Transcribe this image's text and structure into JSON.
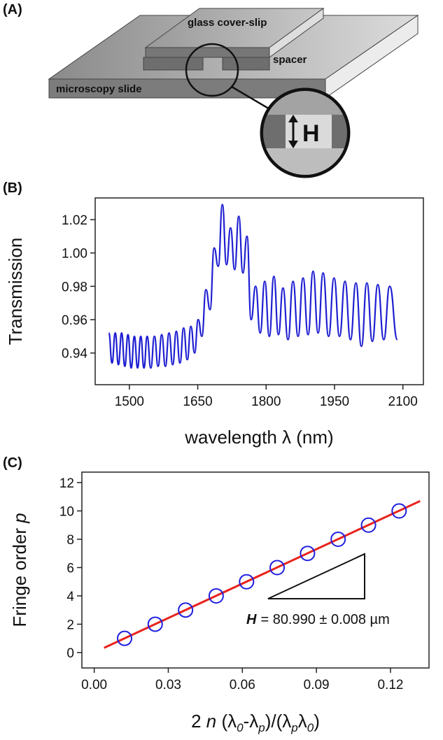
{
  "diagram": {
    "panel_label": "(A)",
    "labels": {
      "cover_slip": "glass cover-slip",
      "spacer": "spacer",
      "slide": "microscopy slide",
      "height": "H"
    }
  },
  "chart_data": [
    {
      "type": "line",
      "panel_label": "(B)",
      "xlabel": "wavelength λ (nm)",
      "ylabel": "Transmission",
      "x": [
        1455,
        1462,
        1469,
        1476,
        1483,
        1490,
        1497,
        1504,
        1511,
        1518,
        1525,
        1532,
        1539,
        1547,
        1555,
        1563,
        1571,
        1579,
        1587,
        1595,
        1603,
        1611,
        1619,
        1627,
        1635,
        1643,
        1651,
        1659,
        1668,
        1677,
        1686,
        1695,
        1704,
        1713,
        1722,
        1731,
        1740,
        1749,
        1758,
        1767,
        1777,
        1787,
        1797,
        1807,
        1817,
        1827,
        1837,
        1848,
        1859,
        1870,
        1881,
        1892,
        1903,
        1914,
        1925,
        1937,
        1949,
        1961,
        1973,
        1985,
        1997,
        2009,
        2021,
        2033,
        2045,
        2058,
        2071,
        2088
      ],
      "series": [
        {
          "color": "#1f1fd2",
          "values": [
            0.952,
            0.934,
            0.952,
            0.933,
            0.952,
            0.932,
            0.951,
            0.931,
            0.95,
            0.931,
            0.95,
            0.931,
            0.95,
            0.931,
            0.95,
            0.932,
            0.951,
            0.932,
            0.952,
            0.933,
            0.953,
            0.934,
            0.955,
            0.936,
            0.956,
            0.94,
            0.96,
            0.95,
            0.978,
            0.966,
            1.003,
            0.992,
            1.029,
            0.993,
            1.015,
            0.99,
            1.022,
            0.988,
            1.01,
            0.96,
            0.98,
            0.952,
            0.983,
            0.95,
            0.986,
            0.951,
            0.979,
            0.948,
            0.983,
            0.95,
            0.985,
            0.951,
            0.989,
            0.952,
            0.988,
            0.95,
            0.985,
            0.95,
            0.983,
            0.948,
            0.982,
            0.944,
            0.982,
            0.947,
            0.981,
            0.948,
            0.98,
            0.948
          ]
        }
      ],
      "xlim": [
        1425,
        2145
      ],
      "xticks": [
        1500,
        1650,
        1800,
        1950,
        2100
      ],
      "ylim": [
        0.921,
        1.033
      ],
      "yticks": [
        0.94,
        0.96,
        0.98,
        {
          "value": 1,
          "label": "1.00"
        },
        1.02
      ]
    },
    {
      "type": "scatter",
      "panel_label": "(C)",
      "xlabel": [
        "2 ",
        "n",
        " (λ",
        "0",
        "-λ",
        "p",
        ")/(λ",
        "p",
        "λ",
        "0",
        ")"
      ],
      "ylabel": [
        "Fringe order",
        "p"
      ],
      "x": [
        0.0123,
        0.0247,
        0.037,
        0.0494,
        0.0617,
        0.0741,
        0.0864,
        0.0988,
        0.1111,
        0.1235
      ],
      "series": [
        {
          "color": "#1f1fe0",
          "values": [
            1,
            2,
            3,
            4,
            5,
            6,
            7,
            8,
            9,
            10
          ]
        }
      ],
      "fit": {
        "color": "#e8231c",
        "x": [
          0.004,
          0.132
        ],
        "values": [
          0.33,
          10.7
        ]
      },
      "annotation": {
        "symbol": "H",
        "text": "= 80.990 ± 0.008 µm"
      },
      "xlim": [
        -0.005,
        0.1356
      ],
      "xticks": [
        {
          "value": 0,
          "label": "0.00"
        },
        0.03,
        0.06,
        0.09,
        0.12
      ],
      "ylim": [
        -1.09,
        12.74
      ],
      "yticks": [
        0,
        2,
        4,
        6,
        8,
        10,
        12
      ]
    }
  ]
}
